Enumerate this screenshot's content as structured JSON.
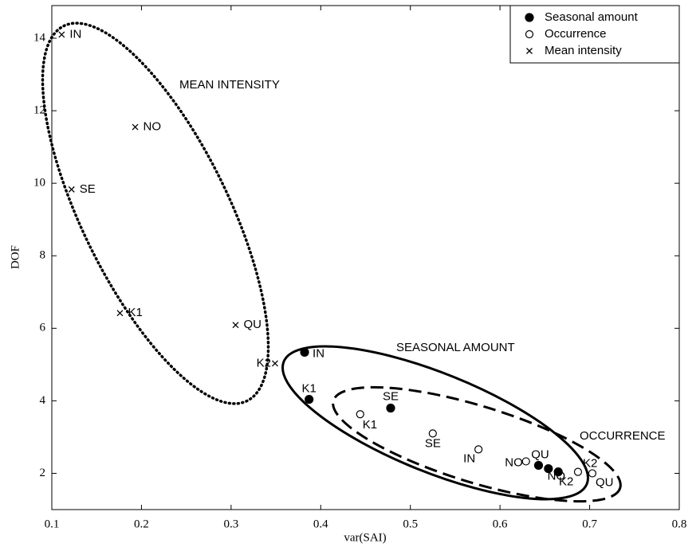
{
  "chart_data": {
    "type": "scatter",
    "xlabel": "var(SAI)",
    "ylabel": "DOF",
    "xlim": [
      0.1,
      0.8
    ],
    "xticks": [
      0.1,
      0.2,
      0.3,
      0.4,
      0.5,
      0.6,
      0.7,
      0.8
    ],
    "ylim": [
      1,
      14.9
    ],
    "yticks": [
      2,
      4,
      6,
      8,
      10,
      12,
      14
    ],
    "legend": "upper right",
    "annotations": [
      "MEAN INTENSITY",
      "SEASONAL AMOUNT",
      "OCCURRENCE"
    ],
    "series": [
      {
        "name": "Seasonal amount",
        "color": "#000000",
        "marker": "filled-circle",
        "labels": [
          "IN",
          "K1",
          "SE",
          "QU",
          "NO",
          "K2"
        ],
        "x": [
          0.382,
          0.387,
          0.478,
          0.643,
          0.654,
          0.665
        ],
        "values": [
          5.34,
          4.04,
          3.8,
          2.22,
          2.13,
          2.04
        ]
      },
      {
        "name": "Occurrence",
        "color": "#000000",
        "marker": "open-circle",
        "labels": [
          "K1",
          "SE",
          "IN",
          "NO",
          "QU",
          "K2"
        ],
        "x": [
          0.444,
          0.525,
          0.576,
          0.629,
          0.703,
          0.687
        ],
        "values": [
          3.63,
          3.1,
          2.66,
          2.33,
          2.0,
          2.04
        ]
      },
      {
        "name": "Mean intensity",
        "color": "#000000",
        "marker": "x",
        "labels": [
          "IN",
          "NO",
          "SE",
          "K1",
          "QU",
          "K2"
        ],
        "x": [
          0.111,
          0.193,
          0.122,
          0.176,
          0.305,
          0.349
        ],
        "values": [
          14.1,
          11.55,
          9.83,
          6.42,
          6.09,
          5.03
        ]
      }
    ]
  }
}
